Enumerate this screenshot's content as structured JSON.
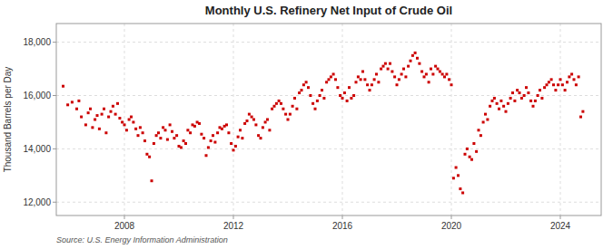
{
  "chart_data": {
    "type": "scatter",
    "title": "Monthly U.S. Refinery Net Input of Crude Oil",
    "ylabel": "Thousand Barrels per Day",
    "annotations": [
      "Source: U.S. Energy Information Administration"
    ],
    "color": "#cc0000",
    "marker": "square",
    "grid": true,
    "xlim": [
      2005.5,
      2025.5
    ],
    "xticks": [
      2008,
      2012,
      2016,
      2020,
      2024
    ],
    "ylim": [
      11500,
      18700
    ],
    "yticks": [
      {
        "value": 12000,
        "label": "12,000"
      },
      {
        "value": 14000,
        "label": "14,000"
      },
      {
        "value": 16000,
        "label": "16,000"
      },
      {
        "value": 18000,
        "label": "18,000"
      }
    ],
    "x": [
      2005.75,
      2005.92,
      2006.08,
      2006.25,
      2006.33,
      2006.42,
      2006.58,
      2006.67,
      2006.75,
      2006.83,
      2006.92,
      2007.0,
      2007.08,
      2007.17,
      2007.25,
      2007.33,
      2007.42,
      2007.5,
      2007.58,
      2007.67,
      2007.75,
      2007.83,
      2007.92,
      2008.0,
      2008.08,
      2008.17,
      2008.25,
      2008.33,
      2008.42,
      2008.5,
      2008.58,
      2008.67,
      2008.75,
      2008.83,
      2008.92,
      2009.0,
      2009.08,
      2009.17,
      2009.25,
      2009.33,
      2009.42,
      2009.5,
      2009.58,
      2009.67,
      2009.75,
      2009.83,
      2009.92,
      2010.0,
      2010.08,
      2010.17,
      2010.25,
      2010.33,
      2010.42,
      2010.5,
      2010.58,
      2010.67,
      2010.75,
      2010.83,
      2010.92,
      2011.0,
      2011.08,
      2011.17,
      2011.25,
      2011.33,
      2011.42,
      2011.5,
      2011.58,
      2011.67,
      2011.75,
      2011.83,
      2011.92,
      2012.0,
      2012.08,
      2012.17,
      2012.25,
      2012.33,
      2012.42,
      2012.5,
      2012.58,
      2012.67,
      2012.75,
      2012.83,
      2012.92,
      2013.0,
      2013.08,
      2013.17,
      2013.25,
      2013.33,
      2013.42,
      2013.5,
      2013.58,
      2013.67,
      2013.75,
      2013.83,
      2013.92,
      2014.0,
      2014.08,
      2014.17,
      2014.25,
      2014.33,
      2014.42,
      2014.5,
      2014.58,
      2014.67,
      2014.75,
      2014.83,
      2014.92,
      2015.0,
      2015.08,
      2015.17,
      2015.25,
      2015.33,
      2015.42,
      2015.5,
      2015.58,
      2015.67,
      2015.75,
      2015.83,
      2015.92,
      2016.0,
      2016.08,
      2016.17,
      2016.25,
      2016.33,
      2016.42,
      2016.5,
      2016.58,
      2016.67,
      2016.75,
      2016.83,
      2016.92,
      2017.0,
      2017.08,
      2017.17,
      2017.25,
      2017.33,
      2017.42,
      2017.5,
      2017.58,
      2017.67,
      2017.75,
      2017.83,
      2017.92,
      2018.0,
      2018.08,
      2018.17,
      2018.25,
      2018.33,
      2018.42,
      2018.5,
      2018.58,
      2018.67,
      2018.75,
      2018.83,
      2018.92,
      2019.0,
      2019.08,
      2019.17,
      2019.25,
      2019.33,
      2019.42,
      2019.5,
      2019.58,
      2019.67,
      2019.75,
      2019.83,
      2019.92,
      2020.0,
      2020.08,
      2020.17,
      2020.25,
      2020.33,
      2020.42,
      2020.5,
      2020.58,
      2020.67,
      2020.75,
      2020.83,
      2020.92,
      2021.0,
      2021.08,
      2021.17,
      2021.25,
      2021.33,
      2021.42,
      2021.5,
      2021.58,
      2021.67,
      2021.75,
      2021.83,
      2021.92,
      2022.0,
      2022.08,
      2022.17,
      2022.25,
      2022.33,
      2022.42,
      2022.5,
      2022.58,
      2022.67,
      2022.75,
      2022.83,
      2022.92,
      2023.0,
      2023.08,
      2023.17,
      2023.25,
      2023.33,
      2023.42,
      2023.5,
      2023.58,
      2023.67,
      2023.75,
      2023.83,
      2023.92,
      2024.0,
      2024.08,
      2024.17,
      2024.25,
      2024.33,
      2024.42,
      2024.5,
      2024.58,
      2024.67,
      2024.75,
      2024.83
    ],
    "values": [
      16350,
      15650,
      15750,
      15500,
      15800,
      15200,
      14900,
      15350,
      15500,
      14800,
      15100,
      15250,
      14750,
      15300,
      15500,
      14600,
      15200,
      15400,
      15600,
      15300,
      15700,
      15150,
      15000,
      14900,
      14700,
      15100,
      15200,
      15000,
      14750,
      14500,
      14800,
      14600,
      14300,
      13800,
      13700,
      12800,
      14200,
      14500,
      14600,
      14400,
      14800,
      14700,
      14350,
      14900,
      14650,
      14400,
      14500,
      14100,
      14050,
      14300,
      14200,
      14700,
      14600,
      14900,
      14850,
      15000,
      14950,
      14550,
      14400,
      13750,
      14050,
      14300,
      14500,
      14250,
      14600,
      14800,
      14750,
      14850,
      14900,
      14600,
      14200,
      13950,
      14100,
      14450,
      14700,
      14400,
      14950,
      15050,
      15300,
      15200,
      15100,
      14900,
      14500,
      14400,
      14800,
      15000,
      15100,
      14700,
      15500,
      15600,
      15700,
      15800,
      15700,
      15500,
      15300,
      15100,
      15300,
      15600,
      15900,
      15500,
      16100,
      16200,
      16400,
      16500,
      16300,
      16000,
      15700,
      15500,
      15800,
      16000,
      16200,
      15900,
      16500,
      16600,
      16700,
      16800,
      16600,
      16300,
      16000,
      15900,
      16100,
      15800,
      16300,
      15900,
      16000,
      16500,
      16700,
      16600,
      16900,
      16600,
      16400,
      16200,
      16400,
      16600,
      16800,
      16500,
      17000,
      17100,
      17200,
      17000,
      17200,
      16900,
      16700,
      16400,
      16600,
      16800,
      17000,
      16700,
      17100,
      17300,
      17500,
      17600,
      17400,
      17200,
      16900,
      16700,
      16800,
      16500,
      17000,
      16800,
      17100,
      17000,
      16900,
      16800,
      16700,
      16800,
      16600,
      16400,
      12900,
      13300,
      13000,
      12500,
      12350,
      13800,
      14000,
      13700,
      13600,
      14200,
      13900,
      14700,
      14500,
      15000,
      15300,
      15100,
      15600,
      15800,
      15900,
      15700,
      15500,
      15800,
      15600,
      15400,
      15700,
      15900,
      16100,
      15800,
      16200,
      16100,
      15900,
      16000,
      16300,
      16100,
      15800,
      15600,
      15800,
      16000,
      16200,
      15900,
      16300,
      16400,
      16500,
      16600,
      16400,
      16200,
      16400,
      16600,
      16400,
      16200,
      16500,
      16700,
      16800,
      16600,
      16400,
      16700,
      15200,
      15400
    ]
  }
}
